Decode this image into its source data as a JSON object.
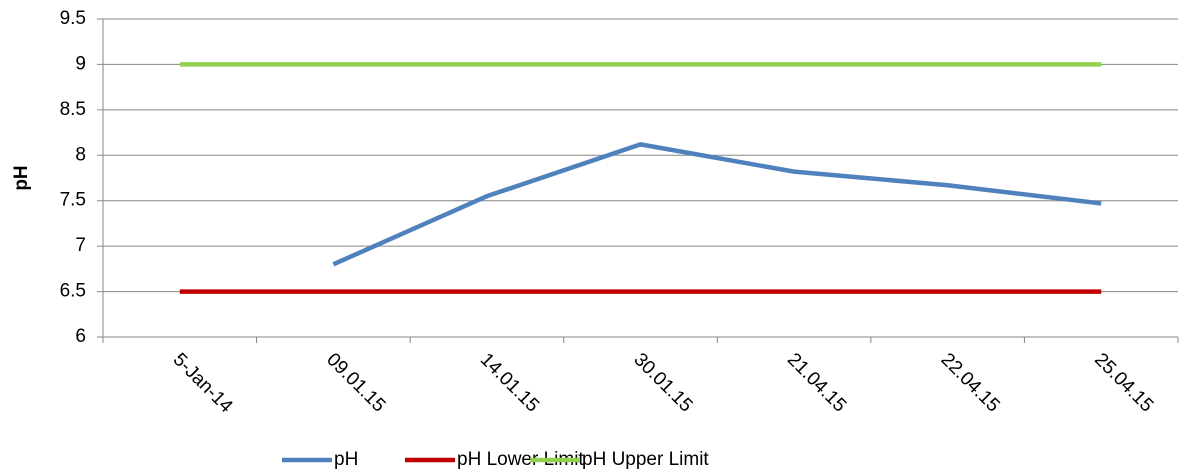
{
  "chart_data": {
    "type": "line",
    "y_label": "pH",
    "categories": [
      "5-Jan-14",
      "09.01.15",
      "14.01.15",
      "30.01.15",
      "21.04.15",
      "22.04.15",
      "25.04.15"
    ],
    "series": [
      {
        "name": "pH",
        "color": "#4f81bd",
        "values": [
          null,
          6.8,
          7.55,
          8.12,
          7.82,
          7.67,
          7.47
        ]
      },
      {
        "name": "pH Lower Limit",
        "color": "#c00000",
        "values": [
          6.5,
          6.5,
          6.5,
          6.5,
          6.5,
          6.5,
          6.5
        ]
      },
      {
        "name": "pH Upper Limit",
        "color": "#92d050",
        "values": [
          9,
          9,
          9,
          9,
          9,
          9,
          9
        ]
      }
    ],
    "ylim": [
      6,
      9.5
    ],
    "yticks": [
      6,
      6.5,
      7,
      7.5,
      8,
      8.5,
      9,
      9.5
    ],
    "grid": true,
    "legend": "bottom"
  }
}
